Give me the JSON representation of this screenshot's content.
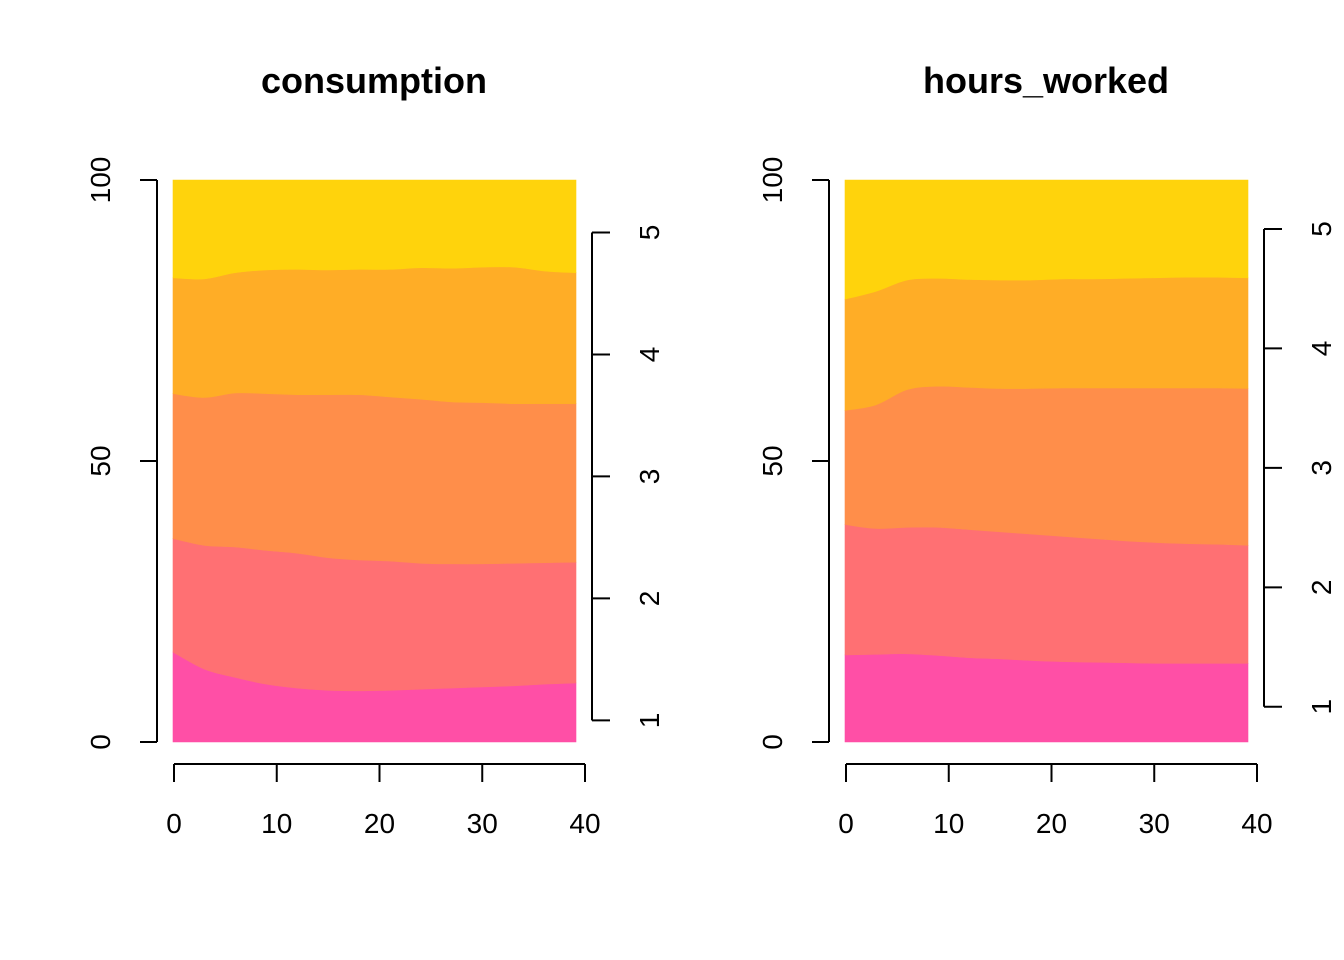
{
  "chart_data": [
    {
      "type": "area",
      "title": "consumption",
      "xlabel": "",
      "ylabel": "",
      "xlim": [
        0,
        39
      ],
      "ylim": [
        0,
        100
      ],
      "x_ticks": [
        "0",
        "10",
        "20",
        "30",
        "40"
      ],
      "y_ticks": [
        "0",
        "50",
        "100"
      ],
      "right_ticks": [
        "1",
        "2",
        "3",
        "4",
        "5"
      ],
      "right_tick_values": [
        1,
        2,
        3,
        4,
        5
      ],
      "right_axis_range": [
        0.823,
        5.43
      ],
      "colors": [
        "#FF4FA6",
        "#FF7073",
        "#FF8E4A",
        "#FFAD26",
        "#FFD30C"
      ],
      "x": [
        0,
        3,
        6,
        9,
        12,
        15,
        18,
        21,
        24,
        27,
        30,
        33,
        36,
        39
      ],
      "series": [
        {
          "values": [
            16,
            13,
            11.5,
            10.3,
            9.6,
            9.2,
            9.1,
            9.2,
            9.4,
            9.6,
            9.8,
            10,
            10.3,
            10.5
          ]
        },
        {
          "values": [
            20.2,
            22,
            23.2,
            23.8,
            24,
            23.6,
            23.3,
            23,
            22.4,
            22.1,
            21.9,
            21.8,
            21.6,
            21.5
          ]
        },
        {
          "values": [
            25.8,
            26.3,
            27.4,
            27.9,
            28.2,
            29,
            29.4,
            29.2,
            29.2,
            28.8,
            28.7,
            28.4,
            28.3,
            28.2
          ]
        },
        {
          "values": [
            20.6,
            21.1,
            21.4,
            22,
            22.3,
            22.2,
            22.3,
            22.7,
            23.4,
            23.8,
            24.1,
            24.3,
            23.6,
            23.3
          ]
        },
        {
          "values": [
            17.4,
            17.6,
            16.5,
            16,
            15.9,
            16,
            16,
            15.9,
            15.6,
            15.7,
            15.5,
            15.5,
            16.2,
            16.5
          ]
        }
      ]
    },
    {
      "type": "area",
      "title": "hours_worked",
      "xlabel": "",
      "ylabel": "",
      "xlim": [
        0,
        39
      ],
      "ylim": [
        0,
        100
      ],
      "x_ticks": [
        "0",
        "10",
        "20",
        "30",
        "40"
      ],
      "y_ticks": [
        "0",
        "50",
        "100"
      ],
      "right_ticks": [
        "1",
        "2",
        "3",
        "4",
        "5"
      ],
      "right_tick_values": [
        1,
        2,
        3,
        4,
        5
      ],
      "right_axis_range": [
        0.705,
        5.41
      ],
      "colors": [
        "#FF4FA6",
        "#FF7073",
        "#FF8E4A",
        "#FFAD26",
        "#FFD30C"
      ],
      "x": [
        0,
        3,
        6,
        9,
        12,
        15,
        18,
        21,
        24,
        27,
        30,
        33,
        36,
        39
      ],
      "series": [
        {
          "values": [
            15.5,
            15.6,
            15.7,
            15.4,
            15,
            14.8,
            14.5,
            14.3,
            14.2,
            14.1,
            14,
            14,
            14,
            14
          ]
        },
        {
          "values": [
            23.2,
            22.4,
            22.5,
            22.8,
            22.8,
            22.6,
            22.5,
            22.3,
            22,
            21.7,
            21.5,
            21.3,
            21.2,
            21
          ]
        },
        {
          "values": [
            20.3,
            22,
            24.5,
            25.1,
            25.3,
            25.5,
            25.9,
            26.4,
            26.8,
            27.2,
            27.5,
            27.7,
            27.8,
            27.9
          ]
        },
        {
          "values": [
            19.8,
            20.2,
            19.5,
            19.2,
            19.2,
            19.3,
            19.3,
            19.4,
            19.4,
            19.5,
            19.6,
            19.7,
            19.7,
            19.7
          ]
        },
        {
          "values": [
            21.2,
            19.8,
            17.8,
            17.5,
            17.7,
            17.8,
            17.8,
            17.6,
            17.6,
            17.5,
            17.4,
            17.3,
            17.3,
            17.4
          ]
        }
      ]
    }
  ]
}
